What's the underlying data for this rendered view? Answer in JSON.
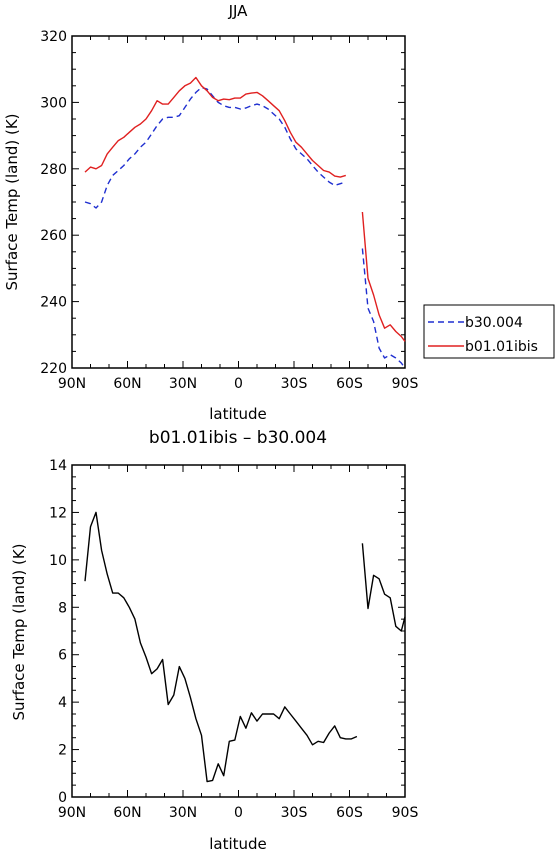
{
  "chart_data": [
    {
      "type": "line",
      "title": "JJA",
      "xlabel": "latitude",
      "ylabel": "Surface Temp (land) (K)",
      "xlim": [
        90,
        -90
      ],
      "ylim": [
        220,
        320
      ],
      "xticks": [
        90,
        60,
        30,
        0,
        -30,
        -60,
        -90
      ],
      "xtick_labels": [
        "90N",
        "60N",
        "30N",
        "0",
        "30S",
        "60S",
        "90S"
      ],
      "yticks": [
        220,
        240,
        260,
        280,
        300,
        320
      ],
      "ytick_labels": [
        "220",
        "240",
        "260",
        "280",
        "300",
        "320"
      ],
      "legend_position": "right",
      "series": [
        {
          "name": "b30.004",
          "color": "#1f2fd0",
          "dash": "dashed",
          "segments": [
            [
              [
                83,
                270
              ],
              [
                80,
                269.5
              ],
              [
                77,
                268.2
              ],
              [
                74,
                270
              ],
              [
                71,
                275
              ],
              [
                68,
                278
              ],
              [
                65,
                279.5
              ],
              [
                62,
                281
              ],
              [
                59,
                283
              ],
              [
                56,
                284.5
              ],
              [
                53,
                286.5
              ],
              [
                50,
                288
              ],
              [
                47,
                290.5
              ],
              [
                44,
                293
              ],
              [
                41,
                295
              ],
              [
                38,
                295.5
              ],
              [
                35,
                295.5
              ],
              [
                32,
                296
              ],
              [
                29,
                298.5
              ],
              [
                26,
                301
              ],
              [
                23,
                303
              ],
              [
                20,
                304.5
              ],
              [
                17,
                304
              ],
              [
                14,
                302
              ],
              [
                11,
                300
              ],
              [
                8,
                299
              ],
              [
                5,
                298.5
              ],
              [
                2,
                298.5
              ],
              [
                -1,
                298
              ],
              [
                -4,
                298.3
              ],
              [
                -7,
                299
              ],
              [
                -10,
                299.5
              ],
              [
                -13,
                299
              ],
              [
                -16,
                298
              ],
              [
                -19,
                296.5
              ],
              [
                -22,
                295
              ],
              [
                -25,
                292.5
              ],
              [
                -28,
                289
              ],
              [
                -31,
                286
              ],
              [
                -34,
                284.5
              ],
              [
                -37,
                283
              ],
              [
                -40,
                281
              ],
              [
                -43,
                279
              ],
              [
                -46,
                277.5
              ],
              [
                -49,
                276
              ],
              [
                -52,
                275
              ],
              [
                -55,
                275.5
              ],
              [
                -58,
                276
              ]
            ],
            [
              [
                -67,
                256
              ],
              [
                -70,
                238
              ],
              [
                -73,
                234
              ],
              [
                -76,
                226
              ],
              [
                -79,
                223
              ],
              [
                -82,
                224
              ],
              [
                -85,
                223
              ],
              [
                -88,
                221.5
              ],
              [
                -90,
                220
              ]
            ]
          ]
        },
        {
          "name": "b01.01ibis",
          "color": "#e02020",
          "dash": "solid",
          "segments": [
            [
              [
                83,
                279
              ],
              [
                80,
                280.5
              ],
              [
                77,
                280
              ],
              [
                74,
                281
              ],
              [
                71,
                284.5
              ],
              [
                68,
                286.5
              ],
              [
                65,
                288.5
              ],
              [
                62,
                289.5
              ],
              [
                59,
                291
              ],
              [
                56,
                292.5
              ],
              [
                53,
                293.5
              ],
              [
                50,
                295
              ],
              [
                47,
                297.5
              ],
              [
                44,
                300.5
              ],
              [
                41,
                299.5
              ],
              [
                38,
                299.5
              ],
              [
                35,
                301.5
              ],
              [
                32,
                303.5
              ],
              [
                29,
                305
              ],
              [
                26,
                305.8
              ],
              [
                23,
                307.5
              ],
              [
                20,
                305
              ],
              [
                17,
                303.5
              ],
              [
                14,
                301.5
              ],
              [
                11,
                300.5
              ],
              [
                8,
                301
              ],
              [
                5,
                300.8
              ],
              [
                2,
                301.3
              ],
              [
                -1,
                301.3
              ],
              [
                -4,
                302.5
              ],
              [
                -7,
                302.8
              ],
              [
                -10,
                303
              ],
              [
                -13,
                302
              ],
              [
                -16,
                300.5
              ],
              [
                -19,
                299
              ],
              [
                -22,
                297.5
              ],
              [
                -25,
                294.5
              ],
              [
                -28,
                291
              ],
              [
                -31,
                288
              ],
              [
                -34,
                286.5
              ],
              [
                -37,
                284.5
              ],
              [
                -40,
                282.5
              ],
              [
                -43,
                281
              ],
              [
                -46,
                279.5
              ],
              [
                -49,
                279
              ],
              [
                -52,
                277.8
              ],
              [
                -55,
                277.5
              ],
              [
                -58,
                278
              ]
            ],
            [
              [
                -67,
                267
              ],
              [
                -70,
                247
              ],
              [
                -73,
                242
              ],
              [
                -76,
                236
              ],
              [
                -79,
                232
              ],
              [
                -82,
                233
              ],
              [
                -85,
                231
              ],
              [
                -88,
                229.5
              ],
              [
                -90,
                228
              ]
            ]
          ]
        }
      ]
    },
    {
      "type": "line",
      "title": "b01.01ibis – b30.004",
      "xlabel": "latitude",
      "ylabel": "Surface Temp (land) (K)",
      "xlim": [
        90,
        -90
      ],
      "ylim": [
        0,
        14
      ],
      "xticks": [
        90,
        60,
        30,
        0,
        -30,
        -60,
        -90
      ],
      "xtick_labels": [
        "90N",
        "60N",
        "30N",
        "0",
        "30S",
        "60S",
        "90S"
      ],
      "yticks": [
        0,
        2,
        4,
        6,
        8,
        10,
        12,
        14
      ],
      "ytick_labels": [
        "0",
        "2",
        "4",
        "6",
        "8",
        "10",
        "12",
        "14"
      ],
      "series": [
        {
          "color": "#000000",
          "dash": "solid",
          "segments": [
            [
              [
                83,
                9.1
              ],
              [
                80,
                11.4
              ],
              [
                77,
                12.0
              ],
              [
                74,
                10.4
              ],
              [
                71,
                9.4
              ],
              [
                68,
                8.6
              ],
              [
                65,
                8.6
              ],
              [
                62,
                8.4
              ],
              [
                59,
                8.0
              ],
              [
                56,
                7.5
              ],
              [
                53,
                6.5
              ],
              [
                50,
                5.9
              ],
              [
                47,
                5.2
              ],
              [
                44,
                5.4
              ],
              [
                41,
                5.8
              ],
              [
                38,
                3.9
              ],
              [
                35,
                4.3
              ],
              [
                32,
                5.5
              ],
              [
                29,
                5.0
              ],
              [
                26,
                4.2
              ],
              [
                23,
                3.3
              ],
              [
                20,
                2.6
              ],
              [
                17,
                0.65
              ],
              [
                14,
                0.7
              ],
              [
                11,
                1.4
              ],
              [
                8,
                0.9
              ],
              [
                5,
                2.35
              ],
              [
                2,
                2.4
              ],
              [
                -1,
                3.4
              ],
              [
                -4,
                2.9
              ],
              [
                -7,
                3.55
              ],
              [
                -10,
                3.2
              ],
              [
                -13,
                3.5
              ],
              [
                -16,
                3.5
              ],
              [
                -19,
                3.5
              ],
              [
                -22,
                3.3
              ],
              [
                -25,
                3.8
              ],
              [
                -28,
                3.5
              ],
              [
                -31,
                3.2
              ],
              [
                -34,
                2.9
              ],
              [
                -37,
                2.6
              ],
              [
                -40,
                2.2
              ],
              [
                -43,
                2.35
              ],
              [
                -46,
                2.3
              ],
              [
                -49,
                2.7
              ],
              [
                -52,
                3.0
              ],
              [
                -55,
                2.5
              ],
              [
                -58,
                2.45
              ],
              [
                -61,
                2.45
              ],
              [
                -64,
                2.55
              ]
            ],
            [
              [
                -67,
                10.7
              ],
              [
                -70,
                7.95
              ],
              [
                -73,
                9.35
              ],
              [
                -76,
                9.2
              ],
              [
                -79,
                8.55
              ],
              [
                -82,
                8.4
              ],
              [
                -85,
                7.2
              ],
              [
                -88,
                7.0
              ],
              [
                -90,
                7.6
              ]
            ]
          ]
        }
      ]
    }
  ]
}
